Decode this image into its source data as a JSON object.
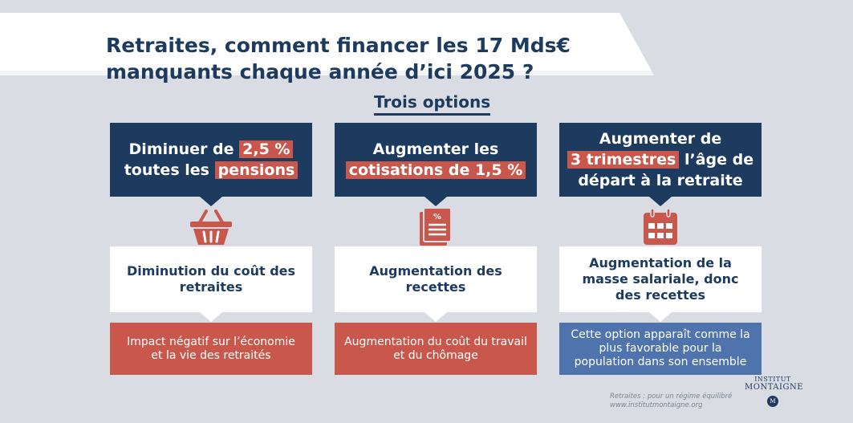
{
  "header": {
    "title_line1": "Retraites, comment financer les 17 Mds€",
    "title_line2": "manquants chaque année d’ici 2025 ?",
    "subtitle": "Trois options"
  },
  "options": [
    {
      "top_line1_pre": "Diminuer de ",
      "top_line1_hl": "2,5 %",
      "top_line2_pre": "toutes les ",
      "top_line2_hl": "pensions",
      "icon": "basket-icon",
      "effect": "Diminution du coût des retraites",
      "consequence": "Impact négatif sur l’économie et la vie des retraités",
      "consequence_color": "#c9574b"
    },
    {
      "top_line1": "Augmenter les",
      "top_line2_hl": "cotisations de 1,5 %",
      "icon": "document-percent-icon",
      "effect": "Augmentation des recettes",
      "consequence": "Augmentation du coût du travail et du chômage",
      "consequence_color": "#c9574b"
    },
    {
      "top_line1": "Augmenter de",
      "top_line2_hl": "3 trimestres",
      "top_line2_post": " l’âge de",
      "top_line3": "départ à la retraite",
      "icon": "calendar-icon",
      "effect": "Augmentation de la masse salariale, donc des recettes",
      "consequence": "Cette option apparaît comme la plus favorable pour la population dans son ensemble",
      "consequence_color": "#4f74ad"
    }
  ],
  "footer": {
    "source_line1": "Retraites : pour un régime équilibré",
    "source_line2": "www.institutmontaigne.org"
  },
  "logo": {
    "line1": "INSTITUT",
    "line2": "MONTAIGNE",
    "seal": "M"
  },
  "colors": {
    "navy": "#1d3a5f",
    "red": "#c9574b",
    "blue": "#4f74ad",
    "background": "#d9dde3"
  }
}
